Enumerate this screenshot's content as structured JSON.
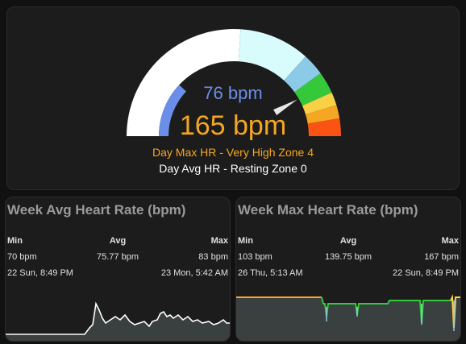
{
  "gauge": {
    "avg_display": "76 bpm",
    "max_display": "165 bpm",
    "max_zone_label": "Day Max HR - Very High Zone 4",
    "avg_zone_label": "Day Avg HR - Resting Zone 0",
    "min": 40,
    "max": 190,
    "avg_value": 76,
    "max_value": 165,
    "segments": [
      {
        "to": 118,
        "color": "#ffffff"
      },
      {
        "to": 150,
        "color": "#d8fbfb"
      },
      {
        "to": 160,
        "color": "#8ccbe8"
      },
      {
        "to": 170,
        "color": "#35c83a"
      },
      {
        "to": 176,
        "color": "#f9d046"
      },
      {
        "to": 182,
        "color": "#f5a623"
      },
      {
        "to": 190,
        "color": "#fa5313"
      }
    ],
    "avg_color": "#6b8fe8",
    "max_color": "#f5a623"
  },
  "week_avg": {
    "title": "Week Avg Heart Rate (bpm)",
    "headers": {
      "min": "Min",
      "avg": "Avg",
      "max": "Max"
    },
    "values": {
      "min": "70 bpm",
      "avg": "75.77 bpm",
      "max": "83 bpm"
    },
    "times": {
      "min": "22 Sun, 8:49 PM",
      "max": "23 Mon, 5:42 AM"
    },
    "line_color": "#ffffff",
    "fill_color": "#3a3f3f"
  },
  "week_max": {
    "title": "Week Max Heart Rate (bpm)",
    "headers": {
      "min": "Min",
      "avg": "Avg",
      "max": "Max"
    },
    "values": {
      "min": "103 bpm",
      "avg": "139.75 bpm",
      "max": "167 bpm"
    },
    "times": {
      "min": "26 Thu, 5:13 AM",
      "max": "22 Sun, 8:49 PM"
    },
    "fill_color": "#3a3f3f"
  }
}
